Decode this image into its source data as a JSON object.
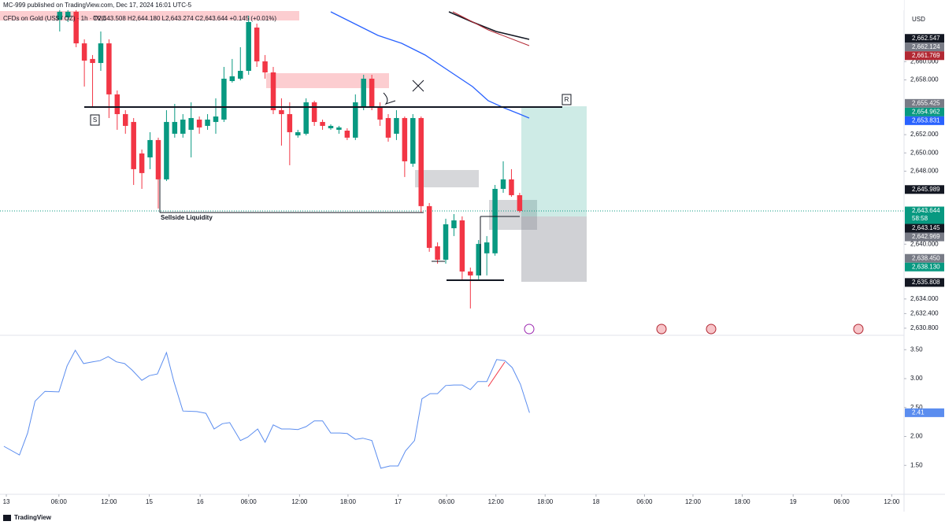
{
  "header": {
    "publisher": "MC-999 published on TradingView.com, Dec 17, 2024 16:01 UTC-5",
    "symbol": "CFDs on Gold (US$ / OZ) · 1h · TVC",
    "ohlc": "O2,643.508 H2,644.180 L2,643.274 C2,643.644 +0.145 (+0.01%)"
  },
  "currency": "USD",
  "countdown": "58:58",
  "footer": "TradingView",
  "annotations": {
    "sellside": "Sellside Liquidity",
    "r": "R",
    "s": "S"
  },
  "chart_data": [
    {
      "type": "candlestick",
      "up_color": "#089981",
      "down_color": "#f23645",
      "x": [
        6.5,
        7.5,
        8.5,
        9.5,
        10.5,
        11.5,
        12.5,
        13.5,
        14.5,
        15.5,
        16.5,
        17.5,
        18.5,
        19.5,
        20.5,
        21.5,
        22.5,
        23.5,
        24.5,
        25.5,
        26.5,
        27.5,
        28.5,
        29.5,
        30.5,
        31.5,
        32.5,
        33.5,
        34.5,
        35.5,
        36.5,
        37.5,
        38.5,
        39.5,
        40.5,
        41.5,
        42.5,
        43.5,
        44.5,
        45.5,
        46.5,
        47.5,
        48.5,
        49.5,
        50.5,
        51.5,
        52.5,
        53.5,
        54.5,
        55.5,
        56.5,
        57.5,
        58.5,
        59.5,
        60.5,
        61.5,
        62.5
      ],
      "open": [
        2664.6,
        2664.85,
        2665.46,
        2662.0,
        2660.29,
        2659.85,
        2662.0,
        2656.41,
        2654.25,
        2653.39,
        2649.94,
        2649.51,
        2651.41,
        2647.1,
        2652.1,
        2652.1,
        2652.53,
        2653.65,
        2652.96,
        2653.39,
        2653.65,
        2657.87,
        2658.13,
        2658.99,
        2663.73,
        2660.03,
        2658.82,
        2654.68,
        2654.25,
        2651.92,
        2652.1,
        2655.54,
        2653.39,
        2652.7,
        2652.53,
        2652.44,
        2651.67,
        2655.11,
        2658.13,
        2655.11,
        2653.82,
        2652.1,
        2653.82,
        2648.82,
        2653.82,
        2644.17,
        2639.77,
        2638.3,
        2641.75,
        2642.61,
        2637.01,
        2636.58,
        2639.0,
        2639.0,
        2646.06,
        2647.1,
        2645.37
      ],
      "high": [
        2665.89,
        2665.72,
        2665.72,
        2662.44,
        2660.72,
        2663.3,
        2662.44,
        2656.84,
        2654.68,
        2653.82,
        2650.37,
        2652.27,
        2651.67,
        2654.68,
        2655.37,
        2654.25,
        2655.54,
        2653.99,
        2654.25,
        2655.98,
        2659.42,
        2660.29,
        2661.58,
        2665.03,
        2664.16,
        2660.72,
        2659.42,
        2655.98,
        2655.54,
        2652.53,
        2655.98,
        2655.72,
        2653.65,
        2653.13,
        2652.96,
        2652.7,
        2656.41,
        2658.56,
        2658.56,
        2655.54,
        2654.25,
        2654.68,
        2653.99,
        2654.25,
        2653.99,
        2644.51,
        2640.2,
        2642.79,
        2643.3,
        2643.05,
        2637.44,
        2640.46,
        2640.89,
        2646.49,
        2649.08,
        2648.22,
        2645.63
      ],
      "low": [
        2663.3,
        2664.34,
        2661.58,
        2657.27,
        2655.11,
        2658.99,
        2653.82,
        2652.53,
        2652.1,
        2646.49,
        2646.06,
        2648.22,
        2643.91,
        2646.92,
        2651.67,
        2651.67,
        2649.51,
        2652.1,
        2652.53,
        2652.1,
        2653.39,
        2657.7,
        2657.96,
        2658.56,
        2659.42,
        2658.13,
        2654.25,
        2650.8,
        2648.65,
        2651.67,
        2651.92,
        2652.96,
        2652.53,
        2652.53,
        2652.1,
        2651.41,
        2651.41,
        2654.68,
        2654.68,
        2652.96,
        2651.23,
        2651.41,
        2647.36,
        2648.48,
        2643.48,
        2639.17,
        2637.87,
        2637.87,
        2640.89,
        2636.15,
        2632.96,
        2636.15,
        2636.58,
        2638.74,
        2645.63,
        2645.2,
        2643.48
      ],
      "close": [
        2665.46,
        2665.46,
        2662.0,
        2660.11,
        2659.85,
        2662.0,
        2656.41,
        2654.25,
        2652.96,
        2648.22,
        2647.79,
        2651.41,
        2647.1,
        2653.39,
        2653.39,
        2653.65,
        2653.82,
        2652.79,
        2653.65,
        2653.99,
        2658.13,
        2658.39,
        2658.99,
        2664.34,
        2660.03,
        2658.82,
        2654.68,
        2654.25,
        2652.27,
        2652.27,
        2655.54,
        2653.39,
        2652.96,
        2652.96,
        2652.79,
        2651.67,
        2655.54,
        2658.13,
        2655.11,
        2653.65,
        2651.67,
        2653.82,
        2649.08,
        2653.82,
        2644.17,
        2639.6,
        2638.3,
        2642.18,
        2642.61,
        2637.01,
        2636.58,
        2640.03,
        2640.2,
        2646.06,
        2647.1,
        2645.37,
        2643.644
      ],
      "xlim": [
        -0.77,
        109.3
      ],
      "xticks": [
        {
          "value": 0,
          "label": "13"
        },
        {
          "value": 6.4,
          "label": "06:00"
        },
        {
          "value": 12.5,
          "label": "12:00"
        },
        {
          "value": 17.4,
          "label": "15"
        },
        {
          "value": 23.6,
          "label": "16"
        },
        {
          "value": 29.5,
          "label": "06:00"
        },
        {
          "value": 35.7,
          "label": "12:00"
        },
        {
          "value": 41.6,
          "label": "18:00"
        },
        {
          "value": 47.7,
          "label": "17"
        },
        {
          "value": 53.6,
          "label": "06:00"
        },
        {
          "value": 59.6,
          "label": "12:00"
        },
        {
          "value": 65.6,
          "label": "18:00"
        },
        {
          "value": 71.8,
          "label": "18"
        },
        {
          "value": 77.7,
          "label": "06:00"
        },
        {
          "value": 83.6,
          "label": "12:00"
        },
        {
          "value": 89.6,
          "label": "18:00"
        },
        {
          "value": 95.8,
          "label": "19"
        },
        {
          "value": 101.7,
          "label": "06:00"
        },
        {
          "value": 107.8,
          "label": "12:00"
        }
      ],
      "ylim": [
        2630.02,
        2666.75
      ],
      "yticks": [
        {
          "value": 2660,
          "label": "2,660.000"
        },
        {
          "value": 2658,
          "label": "2,658.000"
        },
        {
          "value": 2652,
          "label": "2,652.000"
        },
        {
          "value": 2650,
          "label": "2,650.000"
        },
        {
          "value": 2648,
          "label": "2,648.000"
        },
        {
          "value": 2640,
          "label": "2,640.000"
        },
        {
          "value": 2634,
          "label": "2,634.000"
        },
        {
          "value": 2632.4,
          "label": "2,632.400"
        },
        {
          "value": 2630.8,
          "label": "2,630.800"
        }
      ],
      "markers": [
        {
          "value": 2662.547,
          "label": "2,662.547",
          "color": "#131722"
        },
        {
          "value": 2662.124,
          "label": "2,662.124",
          "color": "#787b86"
        },
        {
          "value": 2661.769,
          "label": "2,661.769",
          "color": "#b22833"
        },
        {
          "value": 2655.425,
          "label": "2,655.425",
          "color": "#787b86"
        },
        {
          "value": 2654.962,
          "label": "2,654.962",
          "color": "#089981"
        },
        {
          "value": 2653.831,
          "label": "2,653.831",
          "color": "#2962ff"
        },
        {
          "value": 2645.989,
          "label": "2,645.989",
          "color": "#131722"
        },
        {
          "value": 2643.644,
          "label": "2,643.644",
          "color": "#089981"
        },
        {
          "value": 2643.145,
          "label": "2,643.145",
          "color": "#131722"
        },
        {
          "value": 2642.969,
          "label": "2,642.969",
          "color": "#787b86"
        },
        {
          "value": 2638.45,
          "label": "2,638.450",
          "color": "#787b86"
        },
        {
          "value": 2638.13,
          "label": "2,638.130",
          "color": "#089981"
        },
        {
          "value": 2635.808,
          "label": "2,635.808",
          "color": "#131722"
        }
      ]
    },
    {
      "type": "line",
      "color": "#5b8def",
      "x": [
        -0.3,
        1.6,
        2.6,
        3.5,
        4.7,
        6.4,
        7.4,
        8.4,
        9.4,
        10.5,
        11.4,
        12.4,
        13.4,
        14.4,
        15.3,
        16.5,
        17.4,
        18.4,
        19.5,
        20.4,
        21.5,
        23.2,
        24.3,
        25.3,
        26.3,
        27.2,
        28.5,
        29.4,
        30.6,
        31.5,
        32.5,
        33.5,
        34.5,
        35.5,
        36.5,
        37.5,
        38.5,
        39.5,
        40.6,
        41.5,
        42.5,
        43.4,
        44.5,
        45.6,
        46.7,
        47.7,
        48.6,
        49.7,
        50.6,
        51.6,
        52.5,
        53.5,
        54.5,
        55.5,
        56.5,
        57.4,
        58.5,
        59.7,
        60.7,
        61.6,
        62.6,
        63.7
      ],
      "values": [
        1.83,
        1.68,
        2.06,
        2.61,
        2.78,
        2.77,
        3.22,
        3.49,
        3.26,
        3.29,
        3.31,
        3.38,
        3.29,
        3.26,
        3.15,
        2.97,
        3.05,
        3.08,
        3.45,
        2.95,
        2.44,
        2.43,
        2.4,
        2.13,
        2.22,
        2.24,
        1.93,
        1.99,
        2.13,
        1.9,
        2.2,
        2.13,
        2.13,
        2.12,
        2.17,
        2.27,
        2.27,
        2.06,
        2.06,
        2.05,
        1.95,
        1.97,
        1.93,
        1.45,
        1.49,
        1.49,
        1.75,
        1.93,
        2.65,
        2.74,
        2.74,
        2.88,
        2.89,
        2.89,
        2.81,
        2.95,
        2.95,
        3.33,
        3.31,
        3.19,
        2.9,
        2.41
      ],
      "xlim": [
        -0.77,
        109.3
      ],
      "ylim": [
        1.0,
        3.735
      ],
      "yticks": [
        {
          "value": 3.5,
          "label": "3.50"
        },
        {
          "value": 3,
          "label": "3.00"
        },
        {
          "value": 2.5,
          "label": "2.50"
        },
        {
          "value": 2,
          "label": "2.00"
        },
        {
          "value": 1.5,
          "label": "1.50"
        }
      ],
      "markers": [
        2.41
      ]
    }
  ]
}
